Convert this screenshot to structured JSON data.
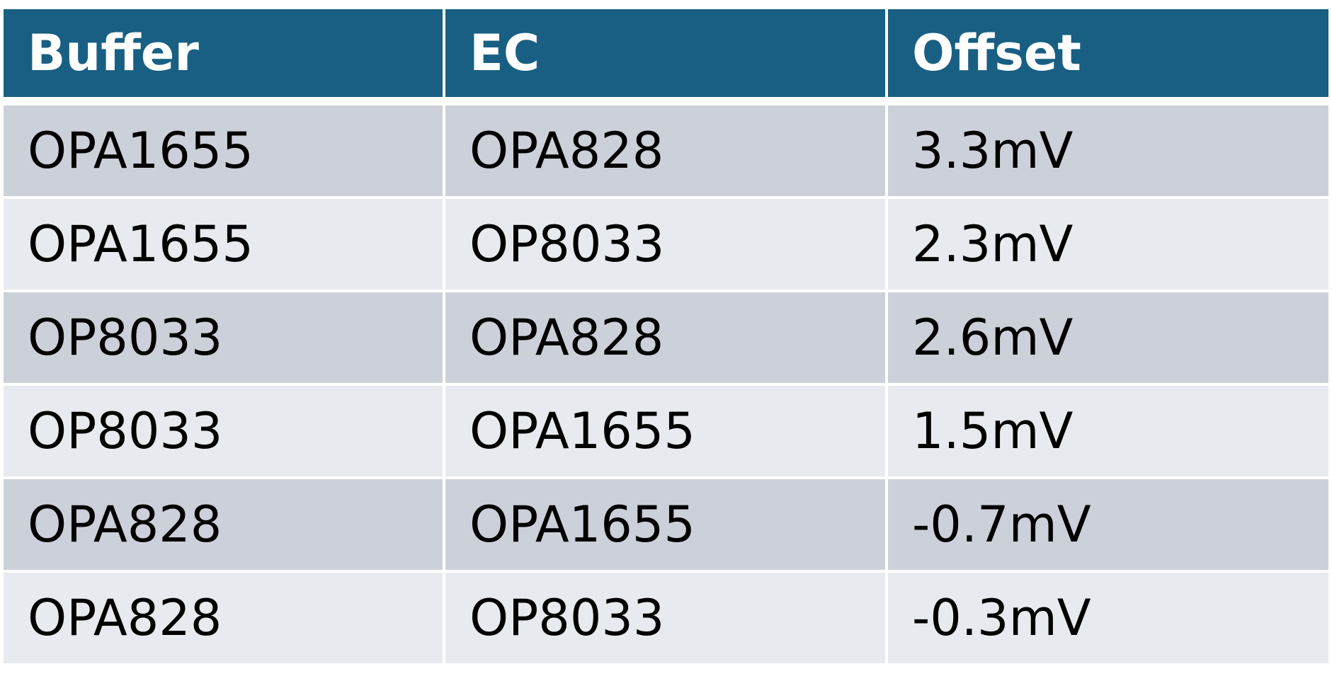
{
  "table": {
    "headers": [
      "Buffer",
      "EC",
      "Offset"
    ],
    "rows": [
      [
        "OPA1655",
        "OPA828",
        "3.3mV"
      ],
      [
        "OPA1655",
        "OP8033",
        "2.3mV"
      ],
      [
        "OP8033",
        "OPA828",
        "2.6mV"
      ],
      [
        "OP8033",
        "OPA1655",
        "1.5mV"
      ],
      [
        "OPA828",
        "OPA1655",
        "-0.7mV"
      ],
      [
        "OPA828",
        "OP8033",
        "-0.3mV"
      ]
    ]
  },
  "colors": {
    "header_bg": "#185f83",
    "header_text": "#ffffff",
    "row_dark": "#ccd1d9",
    "row_light": "#e7eaee"
  }
}
